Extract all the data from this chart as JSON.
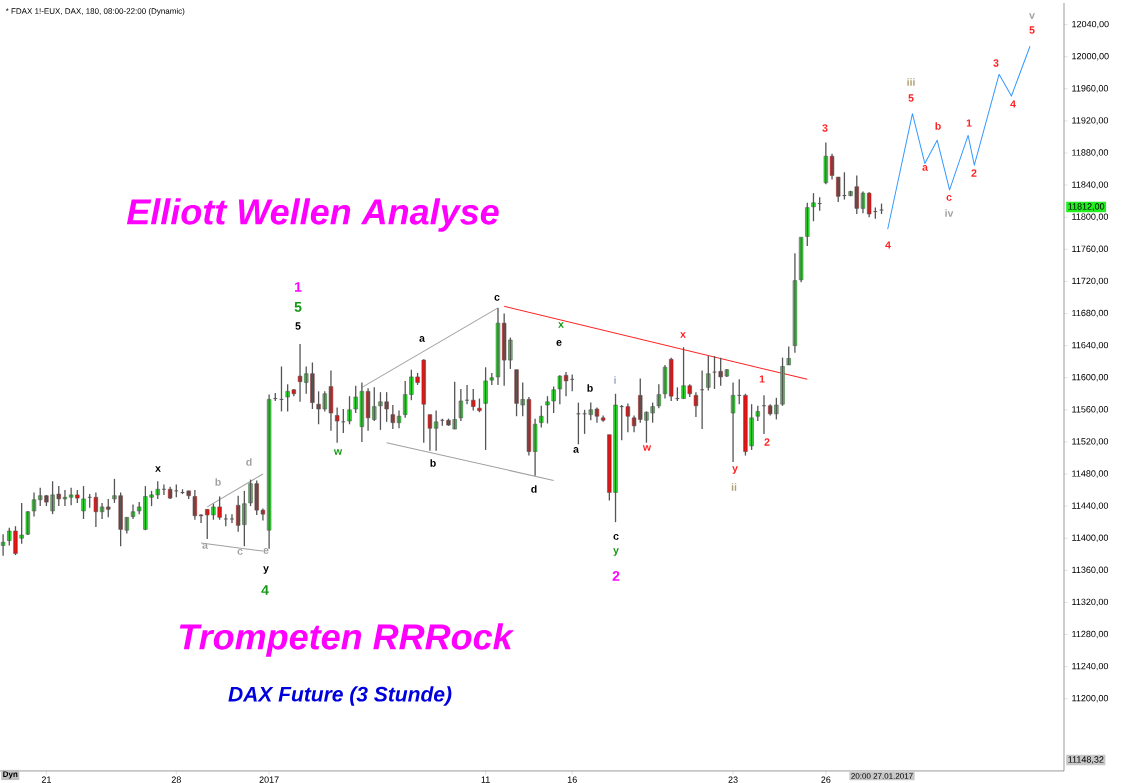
{
  "chart_data": {
    "type": "candlestick",
    "title": "* FDAX 1!-EUX, DAX, 180, 08:00-22:00 (Dynamic)",
    "categories": [
      null,
      null,
      null,
      null,
      null,
      null,
      null,
      "21",
      null,
      null,
      null,
      null,
      null,
      null,
      null,
      null,
      null,
      null,
      null,
      null,
      null,
      null,
      null,
      null,
      null,
      null,
      null,
      null,
      "28",
      null,
      null,
      null,
      null,
      null,
      null,
      null,
      null,
      null,
      null,
      null,
      null,
      null,
      null,
      "2017",
      null,
      null,
      null,
      null,
      null,
      null,
      null,
      null,
      null,
      null,
      null,
      null,
      null,
      null,
      null,
      null,
      null,
      null,
      null,
      null,
      null,
      null,
      null,
      null,
      null,
      null,
      null,
      null,
      null,
      null,
      null,
      null,
      null,
      null,
      "11",
      null,
      null,
      null,
      null,
      null,
      null,
      null,
      null,
      null,
      null,
      null,
      null,
      null,
      "16",
      null,
      null,
      null,
      null,
      null,
      null,
      null,
      null,
      null,
      null,
      null,
      null,
      null,
      null,
      null,
      null,
      null,
      null,
      null,
      null,
      null,
      null,
      null,
      null,
      null,
      "23",
      null,
      null,
      null,
      null,
      null,
      null,
      null,
      null,
      null,
      null,
      null,
      null,
      null,
      null,
      "26",
      null,
      null,
      null,
      null,
      null,
      null,
      null,
      null,
      null,
      null,
      null,
      null,
      null,
      null,
      null,
      null,
      null,
      null,
      null,
      null,
      null,
      null,
      null,
      null,
      null,
      null,
      null,
      null,
      null,
      null,
      null,
      null,
      null,
      null,
      null,
      null,
      null,
      null
    ],
    "ohlc": [
      [
        11391,
        11405,
        11378,
        11395
      ],
      [
        11397,
        11413,
        11391,
        11409
      ],
      [
        11409,
        11415,
        11379,
        11381
      ],
      [
        11400,
        11444,
        11393,
        11404
      ],
      [
        11405,
        11434,
        11404,
        11433
      ],
      [
        11434,
        11457,
        11427,
        11448
      ],
      [
        11448,
        11463,
        11440,
        11453
      ],
      [
        11453,
        11454,
        11440,
        11445
      ],
      [
        11434,
        11471,
        11430,
        11454
      ],
      [
        11455,
        11465,
        11440,
        11449
      ],
      [
        11449,
        11460,
        11440,
        11451
      ],
      [
        11451,
        11463,
        11441,
        11454
      ],
      [
        11454,
        11460,
        11444,
        11450
      ],
      [
        11434,
        11465,
        11424,
        11449
      ],
      [
        11451,
        11455,
        11438,
        11451
      ],
      [
        11451,
        11457,
        11414,
        11433
      ],
      [
        11433,
        11444,
        11424,
        11439
      ],
      [
        11439,
        11449,
        11426,
        11436
      ],
      [
        11449,
        11474,
        11444,
        11453
      ],
      [
        11453,
        11457,
        11390,
        11411
      ],
      [
        11410,
        11426,
        11406,
        11426
      ],
      [
        11427,
        11442,
        11424,
        11433
      ],
      [
        11434,
        11445,
        11430,
        11439
      ],
      [
        11411,
        11465,
        11410,
        11452
      ],
      [
        11451,
        11459,
        11440,
        11454
      ],
      [
        11454,
        11471,
        11449,
        11461
      ],
      [
        11461,
        11467,
        11454,
        11461
      ],
      [
        11461,
        11464,
        11449,
        11450
      ],
      [
        11459,
        11467,
        11451,
        11459
      ],
      [
        11457,
        11461,
        11455,
        11457
      ],
      [
        11459,
        11459,
        11449,
        11453
      ],
      [
        11452,
        11460,
        11423,
        11428
      ],
      [
        11429,
        11430,
        11419,
        11428
      ],
      [
        11436,
        11436,
        11399,
        11429
      ],
      [
        11429,
        11443,
        11423,
        11439
      ],
      [
        11439,
        11452,
        11423,
        11426
      ],
      [
        11424,
        11430,
        11415,
        11424
      ],
      [
        11424,
        11430,
        11419,
        11424
      ],
      [
        11441,
        11453,
        11408,
        11416
      ],
      [
        11417,
        11459,
        11390,
        11443
      ],
      [
        11444,
        11473,
        11440,
        11468
      ],
      [
        11468,
        11472,
        11429,
        11435
      ],
      [
        11435,
        11437,
        11422,
        11430
      ],
      [
        11410,
        11579,
        11387,
        11573
      ],
      [
        11574,
        11581,
        11571,
        11574
      ],
      [
        11573,
        11614,
        11558,
        11573
      ],
      [
        11576,
        11592,
        11558,
        11583
      ],
      [
        11585,
        11586,
        11577,
        11580
      ],
      [
        11602,
        11642,
        11570,
        11595
      ],
      [
        11594,
        11614,
        11580,
        11605
      ],
      [
        11605,
        11619,
        11561,
        11569
      ],
      [
        11567,
        11583,
        11542,
        11561
      ],
      [
        11561,
        11583,
        11558,
        11580
      ],
      [
        11589,
        11609,
        11534,
        11556
      ],
      [
        11553,
        11563,
        11519,
        11546
      ],
      [
        11545,
        11561,
        11531,
        11545
      ],
      [
        11546,
        11577,
        11542,
        11560
      ],
      [
        11561,
        11590,
        11556,
        11576
      ],
      [
        11539,
        11594,
        11520,
        11583
      ],
      [
        11583,
        11587,
        11534,
        11550
      ],
      [
        11548,
        11588,
        11546,
        11564
      ],
      [
        11565,
        11582,
        11535,
        11570
      ],
      [
        11570,
        11582,
        11545,
        11561
      ],
      [
        11554,
        11566,
        11536,
        11544
      ],
      [
        11544,
        11559,
        11537,
        11552
      ],
      [
        11554,
        11596,
        11550,
        11579
      ],
      [
        11579,
        11610,
        11572,
        11601
      ],
      [
        11601,
        11606,
        11591,
        11594
      ],
      [
        11622,
        11623,
        11519,
        11567
      ],
      [
        11554,
        11554,
        11509,
        11537
      ],
      [
        11537,
        11559,
        11509,
        11545
      ],
      [
        11547,
        11549,
        11540,
        11547
      ],
      [
        11547,
        11549,
        11540,
        11541
      ],
      [
        11536,
        11595,
        11536,
        11548
      ],
      [
        11550,
        11586,
        11546,
        11571
      ],
      [
        11572,
        11591,
        11567,
        11572
      ],
      [
        11572,
        11586,
        11559,
        11564
      ],
      [
        11562,
        11574,
        11557,
        11559
      ],
      [
        11568,
        11613,
        11510,
        11596
      ],
      [
        11597,
        11606,
        11591,
        11600
      ],
      [
        11601,
        11687,
        11591,
        11668
      ],
      [
        11668,
        11680,
        11590,
        11622
      ],
      [
        11622,
        11650,
        11611,
        11647
      ],
      [
        11610,
        11610,
        11552,
        11568
      ],
      [
        11566,
        11594,
        11552,
        11573
      ],
      [
        11573,
        11576,
        11503,
        11508
      ],
      [
        11508,
        11549,
        11478,
        11542
      ],
      [
        11544,
        11565,
        11538,
        11552
      ],
      [
        11566,
        11577,
        11543,
        11570
      ],
      [
        11571,
        11589,
        11556,
        11585
      ],
      [
        11586,
        11603,
        11567,
        11602
      ],
      [
        11603,
        11607,
        11577,
        11596
      ],
      [
        11598,
        11604,
        11583,
        11598
      ],
      [
        11555,
        11569,
        11517,
        11555
      ],
      [
        11555,
        11560,
        11530,
        11555
      ],
      [
        11554,
        11569,
        11547,
        11560
      ],
      [
        11561,
        11563,
        11544,
        11552
      ],
      [
        11550,
        11553,
        11545,
        11547
      ],
      [
        11529,
        11529,
        11447,
        11457
      ],
      [
        11457,
        11580,
        11420,
        11566
      ],
      [
        11564,
        11566,
        11522,
        11564
      ],
      [
        11564,
        11568,
        11532,
        11552
      ],
      [
        11550,
        11553,
        11532,
        11540
      ],
      [
        11578,
        11599,
        11544,
        11548
      ],
      [
        11547,
        11558,
        11519,
        11557
      ],
      [
        11556,
        11569,
        11544,
        11564
      ],
      [
        11565,
        11592,
        11562,
        11579
      ],
      [
        11580,
        11616,
        11574,
        11613
      ],
      [
        11623,
        11625,
        11571,
        11577
      ],
      [
        11574,
        11588,
        11571,
        11574
      ],
      [
        11574,
        11638,
        11574,
        11590
      ],
      [
        11590,
        11592,
        11576,
        11580
      ],
      [
        11578,
        11582,
        11551,
        11565
      ],
      [
        11585,
        11609,
        11536,
        11585
      ],
      [
        11588,
        11627,
        11584,
        11605
      ],
      [
        11607,
        11627,
        11586,
        11607
      ],
      [
        11608,
        11625,
        11590,
        11601
      ],
      [
        11602,
        11611,
        11601,
        11610
      ],
      [
        11556,
        11594,
        11495,
        11578
      ],
      [
        11578,
        11598,
        11567,
        11578
      ],
      [
        11578,
        11580,
        11503,
        11508
      ],
      [
        11515,
        11567,
        11510,
        11550
      ],
      [
        11552,
        11565,
        11546,
        11558
      ],
      [
        11565,
        11578,
        11530,
        11565
      ],
      [
        11565,
        11567,
        11553,
        11555
      ],
      [
        11555,
        11575,
        11548,
        11566
      ],
      [
        11567,
        11625,
        11565,
        11614
      ],
      [
        11616,
        11639,
        11616,
        11624
      ],
      [
        11640,
        11755,
        11631,
        11721
      ],
      [
        11722,
        11775,
        11719,
        11775
      ],
      [
        11776,
        11818,
        11764,
        11812
      ],
      [
        11813,
        11830,
        11795,
        11818
      ],
      [
        11817,
        11825,
        11808,
        11817
      ],
      [
        11843,
        11893,
        11841,
        11876
      ],
      [
        11876,
        11879,
        11847,
        11852
      ],
      [
        11850,
        11850,
        11819,
        11826
      ],
      [
        11827,
        11856,
        11822,
        11827
      ],
      [
        11827,
        11833,
        11826,
        11832
      ],
      [
        11838,
        11852,
        11804,
        11811
      ],
      [
        11811,
        11832,
        11805,
        11830
      ],
      [
        11830,
        11831,
        11800,
        11804
      ],
      [
        11807,
        11812,
        11798,
        11807
      ],
      [
        11809,
        11817,
        11804,
        11809
      ],
      null,
      null,
      null,
      null,
      null,
      null,
      null,
      null,
      null,
      null,
      null,
      null,
      null,
      null,
      null,
      null,
      null,
      null,
      null,
      null,
      null,
      null,
      null,
      null,
      null,
      null,
      null,
      null,
      null
    ],
    "series": [
      {
        "type": "line",
        "color": "#3399ff",
        "values": [
          null,
          null,
          null,
          null,
          null,
          null,
          null,
          null,
          null,
          null,
          null,
          null,
          null,
          null,
          null,
          null,
          null,
          null,
          null,
          null,
          null,
          null,
          null,
          null,
          null,
          null,
          null,
          null,
          null,
          null,
          null,
          null,
          null,
          null,
          null,
          null,
          null,
          null,
          null,
          null,
          null,
          null,
          null,
          null,
          null,
          null,
          null,
          null,
          null,
          null,
          null,
          null,
          null,
          null,
          null,
          null,
          null,
          null,
          null,
          null,
          null,
          null,
          null,
          null,
          null,
          null,
          null,
          null,
          null,
          null,
          null,
          null,
          null,
          null,
          null,
          null,
          null,
          null,
          null,
          null,
          null,
          null,
          null,
          null,
          null,
          null,
          null,
          null,
          null,
          null,
          null,
          null,
          null,
          null,
          null,
          null,
          null,
          null,
          null,
          null,
          null,
          null,
          null,
          null,
          null,
          null,
          null,
          null,
          null,
          null,
          null,
          null,
          null,
          null,
          null,
          null,
          null,
          null,
          null,
          null,
          null,
          null,
          null,
          null,
          null,
          null,
          null,
          null,
          null,
          null,
          null,
          null,
          null,
          null,
          null,
          null,
          null,
          null,
          null,
          null,
          null,
          null,
          null,
          11785,
          null,
          null,
          null,
          11929,
          null,
          11867,
          null,
          11896,
          null,
          11834,
          null,
          null,
          11902,
          11865,
          null,
          null,
          null,
          11978,
          null,
          11951,
          null,
          null,
          12013,
          null,
          null,
          null,
          null,
          null
        ]
      },
      {
        "type": "line",
        "color": "#ff2020",
        "values": [
          null,
          null,
          null,
          null,
          null,
          null,
          null,
          null,
          null,
          null,
          null,
          null,
          null,
          null,
          null,
          null,
          null,
          null,
          null,
          null,
          null,
          null,
          null,
          null,
          null,
          null,
          null,
          null,
          null,
          null,
          null,
          null,
          null,
          null,
          null,
          null,
          null,
          null,
          null,
          null,
          null,
          null,
          null,
          null,
          null,
          null,
          null,
          null,
          null,
          null,
          null,
          null,
          null,
          null,
          null,
          null,
          null,
          null,
          null,
          null,
          null,
          null,
          null,
          null,
          null,
          null,
          null,
          null,
          null,
          null,
          null,
          null,
          null,
          null,
          null,
          null,
          null,
          null,
          null,
          null,
          null,
          11689,
          null,
          null,
          null,
          null,
          null,
          null,
          null,
          null,
          null,
          null,
          null,
          null,
          null,
          null,
          null,
          null,
          null,
          null,
          null,
          null,
          null,
          null,
          null,
          null,
          null,
          null,
          null,
          null,
          null,
          null,
          null,
          null,
          null,
          null,
          null,
          null,
          null,
          null,
          null,
          null,
          null,
          null,
          null,
          null,
          null,
          null,
          null,
          null,
          11598,
          null,
          null,
          null,
          null,
          null,
          null,
          null,
          null,
          null,
          null,
          null,
          null,
          null,
          null,
          null,
          null,
          null,
          null,
          null,
          null,
          null,
          null,
          null,
          null,
          null,
          null,
          null,
          null,
          null,
          null,
          null,
          null,
          null,
          null,
          null,
          null,
          null,
          null,
          null,
          null,
          null
        ]
      },
      {
        "type": "line",
        "color": "#a0a0a0",
        "values": [
          null,
          null,
          null,
          null,
          null,
          null,
          null,
          null,
          null,
          null,
          null,
          null,
          null,
          null,
          null,
          null,
          null,
          null,
          null,
          null,
          null,
          null,
          null,
          null,
          null,
          null,
          null,
          null,
          null,
          null,
          null,
          null,
          11394,
          null,
          null,
          null,
          null,
          null,
          null,
          null,
          null,
          null,
          11384,
          null,
          null,
          null,
          null,
          null,
          null,
          null,
          null,
          null,
          null,
          null,
          null,
          null,
          null,
          null,
          null,
          null,
          null,
          null,
          null,
          null,
          null,
          null,
          null,
          null,
          null,
          null,
          null,
          null,
          null,
          null,
          null,
          null,
          null,
          null,
          null,
          null,
          null,
          null,
          null,
          null,
          null,
          null,
          null,
          null,
          null,
          null,
          null,
          null,
          null,
          null,
          null,
          null,
          null,
          null,
          null,
          null,
          null,
          null,
          null,
          null,
          null,
          null,
          null,
          null,
          null,
          null,
          null,
          null,
          null,
          null,
          null,
          null,
          null,
          null,
          null,
          null,
          null,
          null,
          null,
          null,
          null,
          null,
          null,
          null,
          null,
          null,
          null,
          null,
          null,
          null,
          null,
          null,
          null,
          null,
          null,
          null,
          null,
          null,
          null,
          null,
          null,
          null,
          null,
          null,
          null,
          null,
          null,
          null,
          null,
          null,
          null,
          null,
          null,
          null,
          null,
          null,
          null,
          null,
          null,
          null,
          null,
          null,
          null,
          null,
          null,
          null,
          null,
          null
        ]
      },
      {
        "type": "line",
        "color": "#a0a0a0",
        "values": [
          null,
          null,
          null,
          null,
          null,
          null,
          null,
          null,
          null,
          null,
          null,
          null,
          null,
          null,
          null,
          null,
          null,
          null,
          null,
          null,
          null,
          null,
          null,
          null,
          null,
          null,
          null,
          null,
          null,
          null,
          null,
          null,
          null,
          11439,
          null,
          null,
          null,
          null,
          null,
          null,
          null,
          null,
          11480,
          null,
          null,
          null,
          null,
          null,
          null,
          null,
          null,
          null,
          null,
          null,
          null,
          null,
          null,
          null,
          null,
          null,
          null,
          null,
          null,
          null,
          null,
          null,
          null,
          null,
          null,
          null,
          null,
          null,
          null,
          null,
          null,
          null,
          null,
          null,
          null,
          null,
          null,
          null,
          null,
          null,
          null,
          null,
          null,
          null,
          null,
          null,
          null,
          null,
          null,
          null,
          null,
          null,
          null,
          null,
          null,
          null,
          null,
          null,
          null,
          null,
          null,
          null,
          null,
          null,
          null,
          null,
          null,
          null,
          null,
          null,
          null,
          null,
          null,
          null,
          null,
          null,
          null,
          null,
          null,
          null,
          null,
          null,
          null,
          null,
          null,
          null,
          null,
          null,
          null,
          null,
          null,
          null,
          null,
          null,
          null,
          null,
          null,
          null,
          null,
          null,
          null,
          null,
          null,
          null,
          null,
          null,
          null,
          null,
          null,
          null,
          null,
          null,
          null,
          null,
          null,
          null,
          null,
          null,
          null,
          null,
          null,
          null,
          null,
          null,
          null,
          null,
          null,
          null
        ]
      },
      {
        "type": "line",
        "color": "#a0a0a0",
        "values": [
          null,
          null,
          null,
          null,
          null,
          null,
          null,
          null,
          null,
          null,
          null,
          null,
          null,
          null,
          null,
          null,
          null,
          null,
          null,
          null,
          null,
          null,
          null,
          null,
          null,
          null,
          null,
          null,
          null,
          null,
          null,
          null,
          null,
          null,
          null,
          null,
          null,
          null,
          null,
          null,
          null,
          null,
          null,
          null,
          null,
          null,
          null,
          null,
          null,
          null,
          null,
          null,
          null,
          null,
          null,
          null,
          null,
          null,
          11588,
          null,
          null,
          null,
          null,
          null,
          null,
          null,
          null,
          null,
          null,
          null,
          null,
          null,
          null,
          null,
          null,
          null,
          null,
          null,
          null,
          null,
          11687,
          null,
          null,
          null,
          null,
          null,
          null,
          null,
          null,
          null,
          null,
          null,
          null,
          null,
          null,
          null,
          null,
          null,
          null,
          null,
          null,
          null,
          null,
          null,
          null,
          null,
          null,
          null,
          null,
          null,
          null,
          null,
          null,
          null,
          null,
          null,
          null,
          null,
          null,
          null,
          null,
          null,
          null,
          null,
          null,
          null,
          null,
          null,
          null,
          null,
          null,
          null,
          null,
          null,
          null,
          null,
          null,
          null,
          null,
          null,
          null,
          null,
          null,
          null,
          null,
          null,
          null,
          null,
          null,
          null,
          null,
          null,
          null,
          null,
          null,
          null,
          null,
          null,
          null,
          null,
          null,
          null,
          null,
          null,
          null,
          null,
          null,
          null,
          null,
          null,
          null,
          null
        ]
      },
      {
        "type": "line",
        "color": "#a0a0a0",
        "values": [
          null,
          null,
          null,
          null,
          null,
          null,
          null,
          null,
          null,
          null,
          null,
          null,
          null,
          null,
          null,
          null,
          null,
          null,
          null,
          null,
          null,
          null,
          null,
          null,
          null,
          null,
          null,
          null,
          null,
          null,
          null,
          null,
          null,
          null,
          null,
          null,
          null,
          null,
          null,
          null,
          null,
          null,
          null,
          null,
          null,
          null,
          null,
          null,
          null,
          null,
          null,
          null,
          null,
          null,
          null,
          null,
          null,
          null,
          null,
          null,
          null,
          null,
          11519,
          null,
          null,
          null,
          null,
          null,
          null,
          null,
          null,
          null,
          null,
          null,
          null,
          null,
          null,
          null,
          null,
          null,
          null,
          null,
          null,
          null,
          null,
          null,
          null,
          null,
          null,
          11472,
          null,
          null,
          null,
          null,
          null,
          null,
          null,
          null,
          null,
          null,
          null,
          null,
          null,
          null,
          null,
          null,
          null,
          null,
          null,
          null,
          null,
          null,
          null,
          null,
          null,
          null,
          null,
          null,
          null,
          null,
          null,
          null,
          null,
          null,
          null,
          null,
          null,
          null,
          null,
          null,
          null,
          null,
          null,
          null,
          null,
          null,
          null,
          null,
          null,
          null,
          null,
          null,
          null,
          null,
          null,
          null,
          null,
          null,
          null,
          null,
          null,
          null,
          null,
          null,
          null,
          null,
          null,
          null,
          null,
          null,
          null,
          null,
          null,
          null,
          null,
          null,
          null,
          null,
          null,
          null,
          null,
          null
        ]
      }
    ],
    "ylim": [
      11110,
      12067
    ],
    "yticks": [
      {
        "value": 11200,
        "label": "11200,00"
      },
      {
        "value": 11240,
        "label": "11240,00"
      },
      {
        "value": 11280,
        "label": "11280,00"
      },
      {
        "value": 11320,
        "label": "11320,00"
      },
      {
        "value": 11360,
        "label": "11360,00"
      },
      {
        "value": 11400,
        "label": "11400,00"
      },
      {
        "value": 11440,
        "label": "11440,00"
      },
      {
        "value": 11480,
        "label": "11480,00"
      },
      {
        "value": 11520,
        "label": "11520,00"
      },
      {
        "value": 11560,
        "label": "11560,00"
      },
      {
        "value": 11600,
        "label": "11600,00"
      },
      {
        "value": 11640,
        "label": "11640,00"
      },
      {
        "value": 11680,
        "label": "11680,00"
      },
      {
        "value": 11720,
        "label": "11720,00"
      },
      {
        "value": 11760,
        "label": "11760,00"
      },
      {
        "value": 11800,
        "label": "11800,00"
      },
      {
        "value": 11840,
        "label": "11840,00"
      },
      {
        "value": 11880,
        "label": "11880,00"
      },
      {
        "value": 11920,
        "label": "11920,00"
      },
      {
        "value": 11960,
        "label": "11960,00"
      },
      {
        "value": 12000,
        "label": "12000,00"
      },
      {
        "value": 12040,
        "label": "12040,00"
      }
    ],
    "annotations": [
      "Elliott Wellen Analyse",
      "Trompeten RRRock",
      "DAX Future (3 Stunde)",
      "Dyn",
      "11812,00",
      "11148,32",
      "20:00 27.01.2017",
      "1",
      "5",
      "5",
      "x",
      "b",
      "d",
      "a",
      "c",
      "e",
      "y",
      "4",
      "w",
      "a",
      "b",
      {
        "text": "c",
        "y": 11687
      },
      "d",
      "x",
      "e",
      "b",
      "a",
      "i",
      "w",
      "x",
      "c",
      "y",
      "2",
      "y",
      "ii",
      "1",
      "2",
      "3",
      "4",
      "iii",
      "5",
      "a",
      "b",
      "c",
      "iv",
      "1",
      "2",
      "3",
      "4",
      "v",
      "5"
    ]
  }
}
